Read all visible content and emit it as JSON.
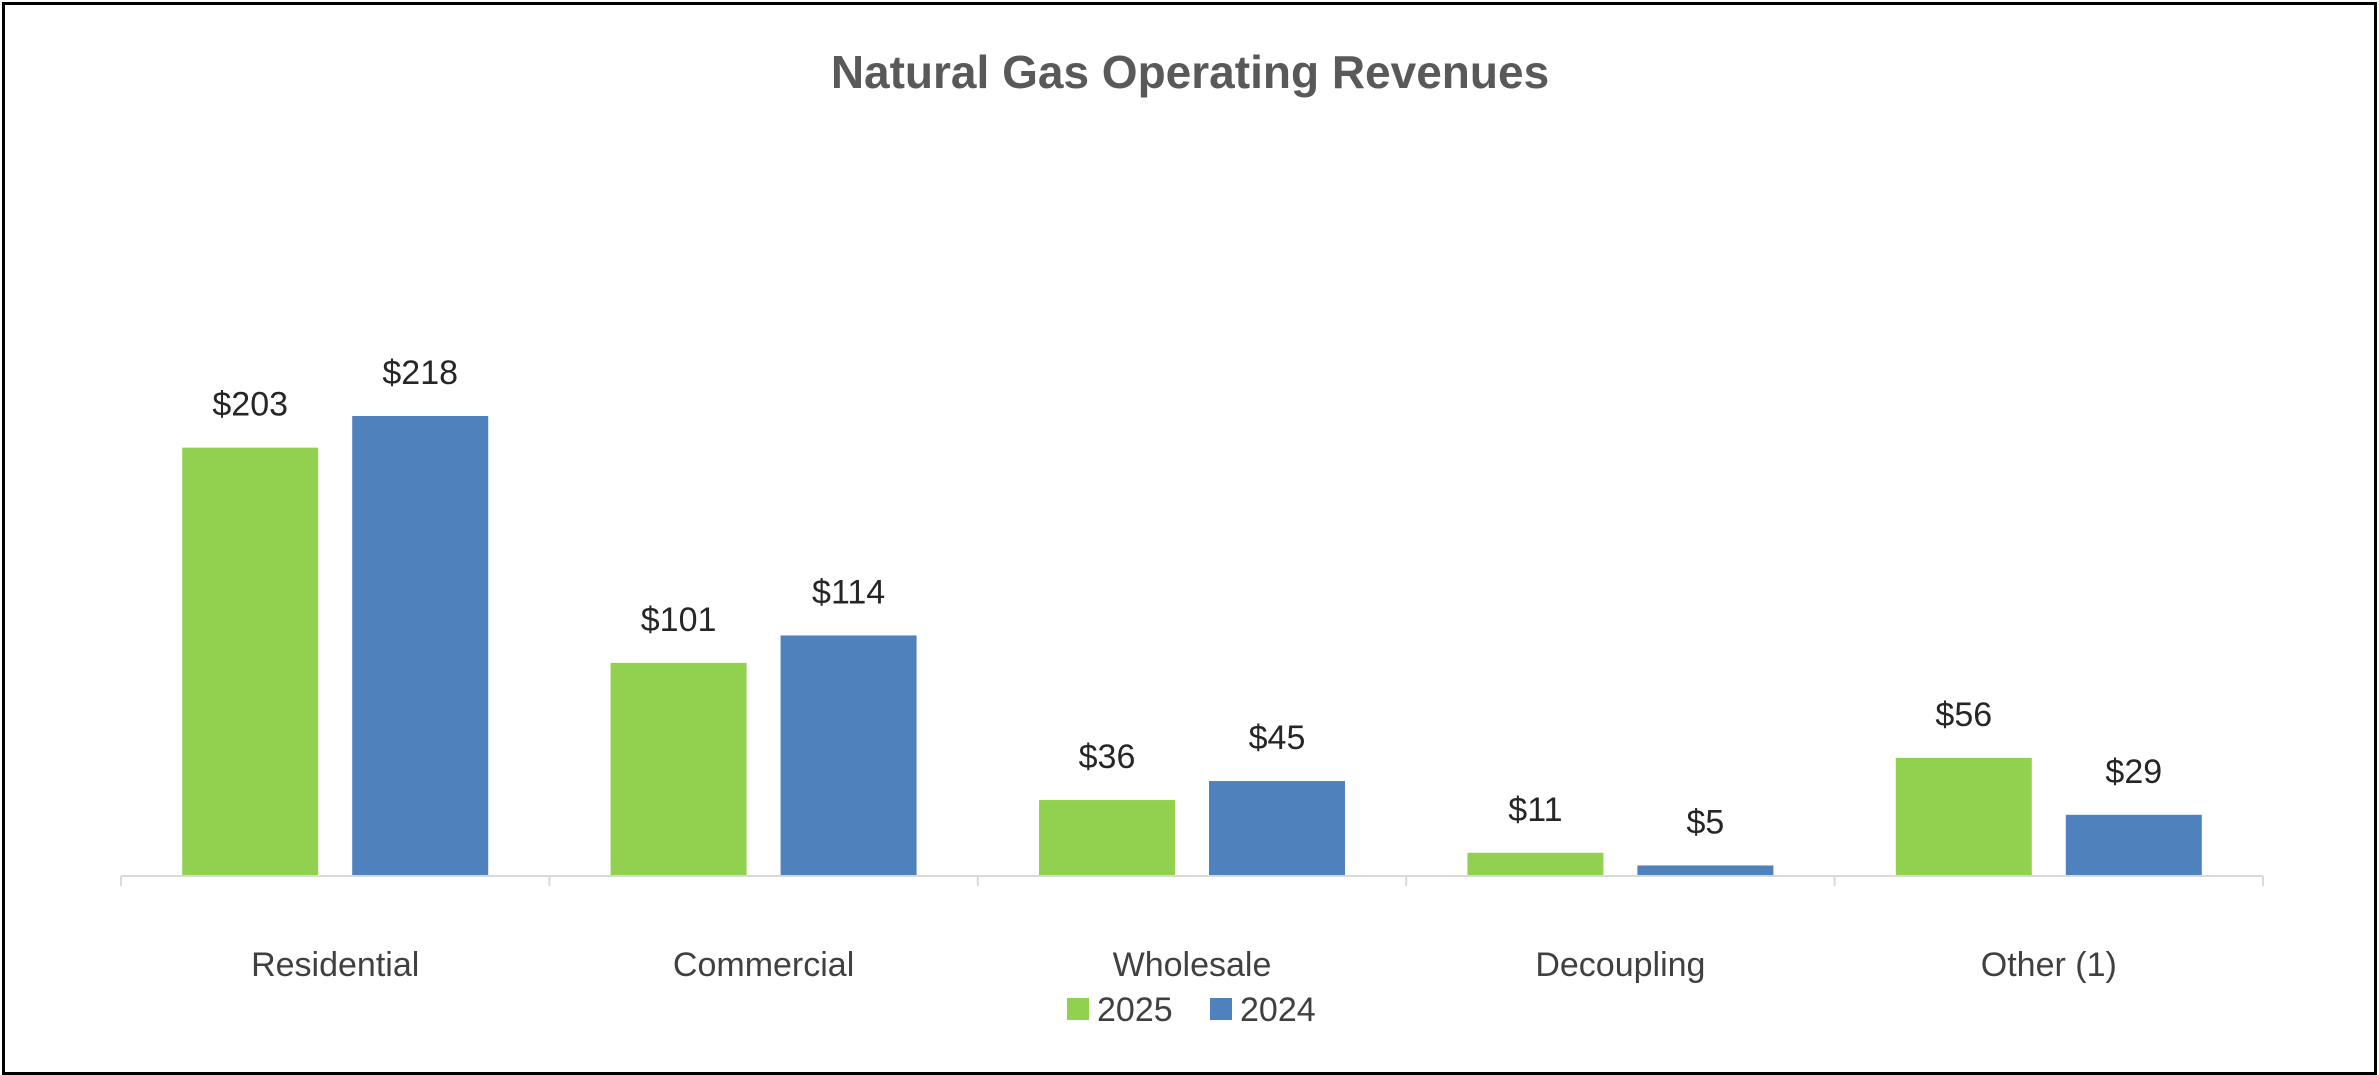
{
  "chart_data": {
    "type": "bar",
    "title": "Natural Gas Operating Revenues",
    "xlabel": "",
    "ylabel": "",
    "ylim": [
      0,
      218
    ],
    "grid": false,
    "legend": "bottom-center",
    "categories": [
      "Residential",
      "Commercial",
      "Wholesale",
      "Decoupling",
      "Other (1)"
    ],
    "series": [
      {
        "name": "2025",
        "color": "#92D050",
        "values": [
          203,
          101,
          36,
          11,
          56
        ],
        "labels": [
          "$203",
          "$101",
          "$36",
          "$11",
          "$56"
        ]
      },
      {
        "name": "2024",
        "color": "#4F81BD",
        "values": [
          218,
          114,
          45,
          5,
          29
        ],
        "labels": [
          "$218",
          "$114",
          "$45",
          "$5",
          "$29"
        ]
      }
    ]
  }
}
